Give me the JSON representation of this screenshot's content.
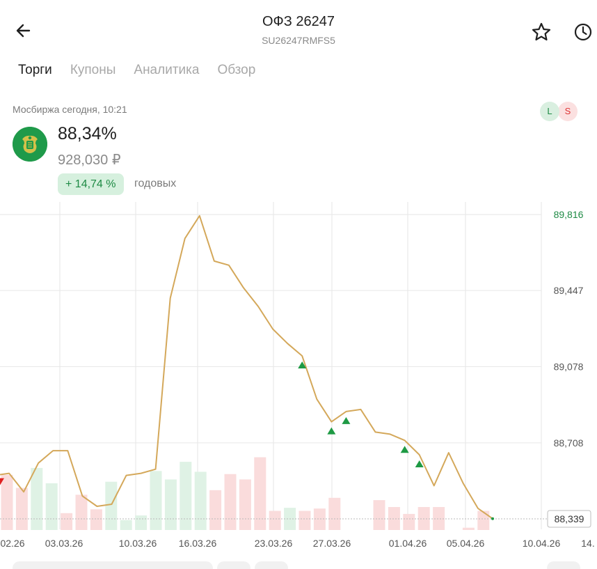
{
  "header": {
    "title": "ОФЗ 26247",
    "subtitle": "SU26247RMFS5",
    "back_icon": "arrow-left-icon",
    "favorite_icon": "star-icon",
    "history_icon": "clock-icon"
  },
  "tabs": [
    {
      "label": "Торги",
      "active": true
    },
    {
      "label": "Купоны",
      "active": false
    },
    {
      "label": "Аналитика",
      "active": false
    },
    {
      "label": "Обзор",
      "active": false
    }
  ],
  "quote": {
    "exchange": "Мосбиржа сегодня, 10:21",
    "price_percent": "88,34%",
    "price_rub": "928,030 ₽",
    "yield": "+ 14,74 %",
    "yield_label": "годовых",
    "long_badge": "L",
    "short_badge": "S"
  },
  "colors": {
    "line": "#d4a85a",
    "up": "#1e9a44",
    "down": "#e02020",
    "bar_up": "#dff2e5",
    "bar_down": "#fadcdc",
    "grid": "#e6e6e6",
    "max_label": "#1e8a44"
  },
  "chart_data": {
    "type": "line",
    "y_ticks": [
      "89,816",
      "89,447",
      "89,078",
      "88,708"
    ],
    "y_tick_values": [
      89.816,
      89.447,
      89.078,
      88.708
    ],
    "current_label": "88,339",
    "current_value": 88.339,
    "x_ticks": [
      "02.26",
      "03.03.26",
      "10.03.26",
      "16.03.26",
      "23.03.26",
      "27.03.26",
      "01.04.26",
      "05.04.26",
      "10.04.26",
      "14."
    ],
    "price_series": [
      88.55,
      88.56,
      88.47,
      88.61,
      88.67,
      88.67,
      88.45,
      88.4,
      88.41,
      88.55,
      88.56,
      88.58,
      89.41,
      89.7,
      89.81,
      89.59,
      89.57,
      89.46,
      89.37,
      89.26,
      89.19,
      89.13,
      88.92,
      88.81,
      88.86,
      88.87,
      88.76,
      88.75,
      88.72,
      88.65,
      88.5,
      88.66,
      88.51,
      88.39,
      88.34
    ],
    "volume_bars": [
      {
        "dir": "down",
        "v": 0.72
      },
      {
        "dir": "down",
        "v": 0.55
      },
      {
        "dir": "up",
        "v": 0.81
      },
      {
        "dir": "up",
        "v": 0.61
      },
      {
        "dir": "down",
        "v": 0.22
      },
      {
        "dir": "down",
        "v": 0.46
      },
      {
        "dir": "down",
        "v": 0.27
      },
      {
        "dir": "up",
        "v": 0.63
      },
      {
        "dir": "up",
        "v": 0.13
      },
      {
        "dir": "up",
        "v": 0.19
      },
      {
        "dir": "up",
        "v": 0.77
      },
      {
        "dir": "up",
        "v": 0.66
      },
      {
        "dir": "up",
        "v": 0.89
      },
      {
        "dir": "up",
        "v": 0.76
      },
      {
        "dir": "down",
        "v": 0.52
      },
      {
        "dir": "down",
        "v": 0.73
      },
      {
        "dir": "down",
        "v": 0.66
      },
      {
        "dir": "down",
        "v": 0.95
      },
      {
        "dir": "down",
        "v": 0.25
      },
      {
        "dir": "up",
        "v": 0.29
      },
      {
        "dir": "down",
        "v": 0.25
      },
      {
        "dir": "down",
        "v": 0.28
      },
      {
        "dir": "down",
        "v": 0.42
      },
      {
        "dir": "down",
        "v": 0.0
      },
      {
        "dir": "down",
        "v": 0.0
      },
      {
        "dir": "down",
        "v": 0.39
      },
      {
        "dir": "down",
        "v": 0.3
      },
      {
        "dir": "down",
        "v": 0.21
      },
      {
        "dir": "down",
        "v": 0.3
      },
      {
        "dir": "down",
        "v": 0.3
      },
      {
        "dir": "down",
        "v": 0.0
      },
      {
        "dir": "down",
        "v": 0.03
      },
      {
        "dir": "down",
        "v": 0.25
      },
      {
        "dir": "down",
        "v": 0.0
      }
    ],
    "trade_markers": [
      {
        "type": "sell",
        "index": 0
      },
      {
        "type": "buy",
        "index": 21
      },
      {
        "type": "buy",
        "index": 23
      },
      {
        "type": "buy",
        "index": 24
      },
      {
        "type": "buy",
        "index": 28
      },
      {
        "type": "buy",
        "index": 29
      }
    ],
    "grid": true
  }
}
